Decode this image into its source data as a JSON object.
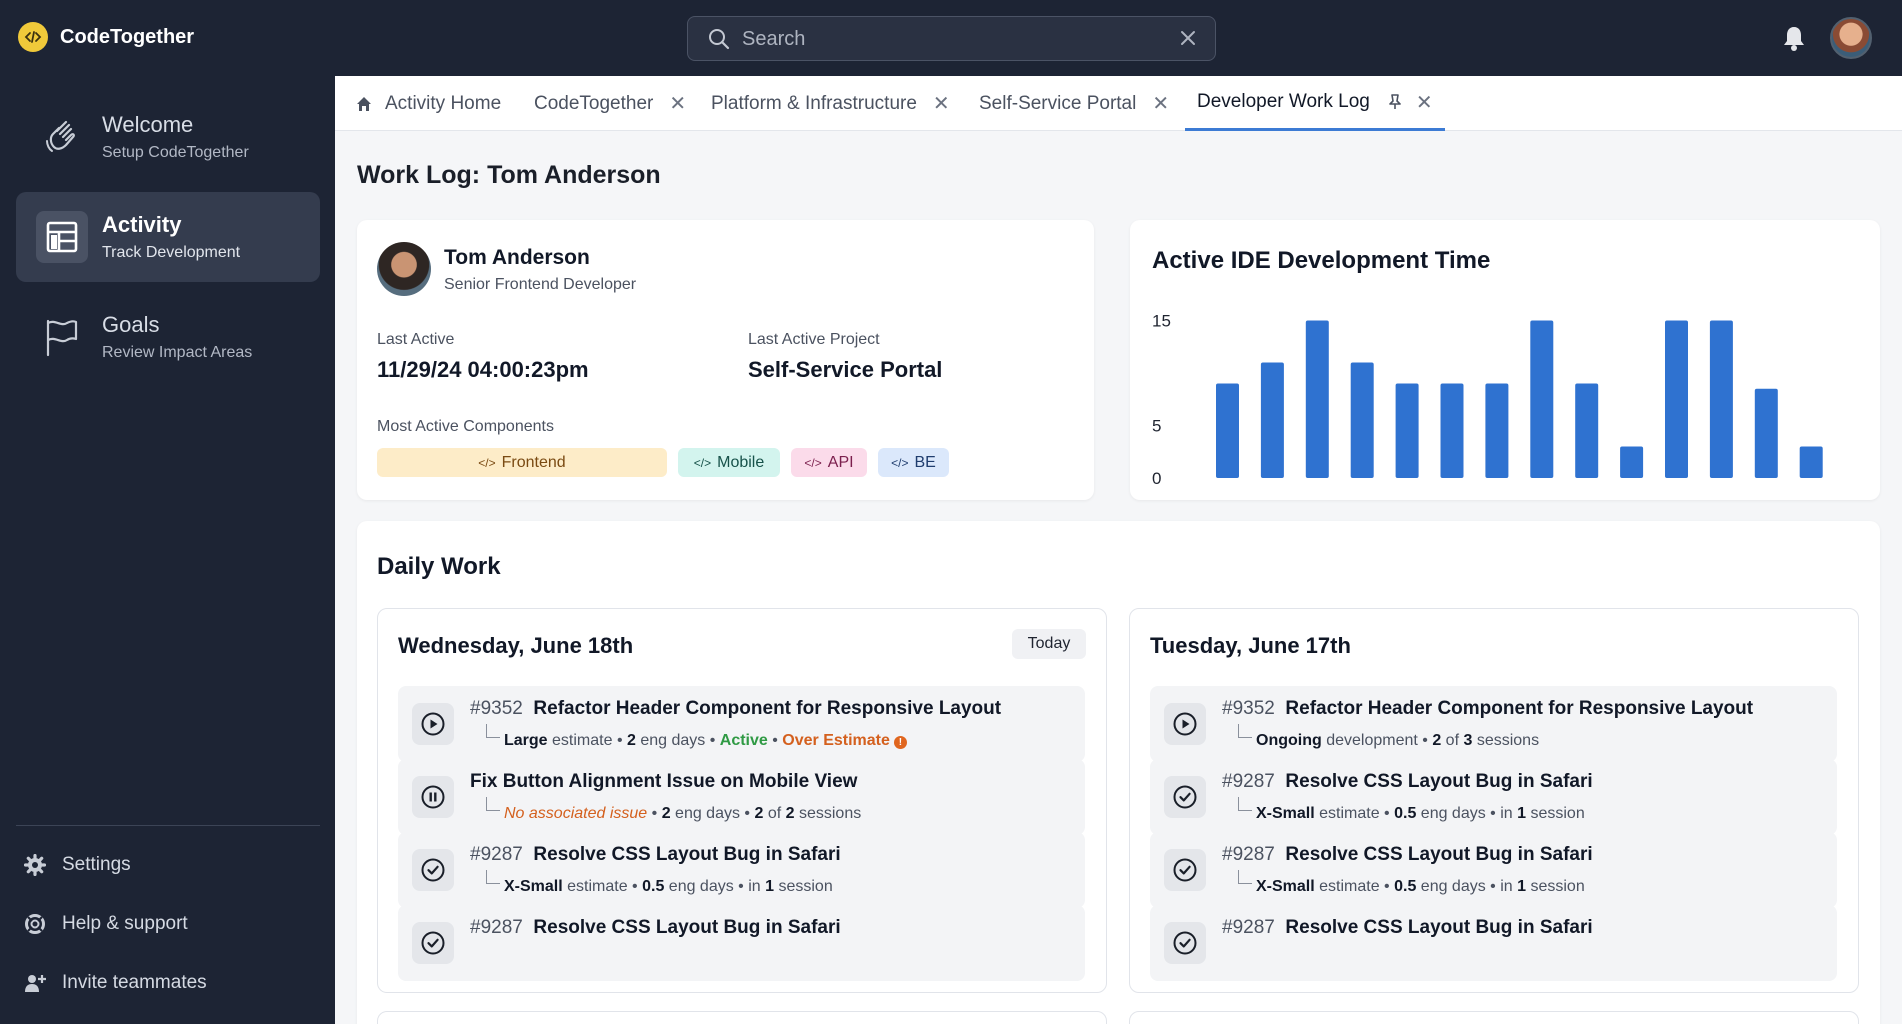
{
  "app": {
    "name": "CodeTogether"
  },
  "search": {
    "placeholder": "Search"
  },
  "sidebar": {
    "items": [
      {
        "title": "Welcome",
        "subtitle": "Setup CodeTogether"
      },
      {
        "title": "Activity",
        "subtitle": "Track Development"
      },
      {
        "title": "Goals",
        "subtitle": "Review Impact Areas"
      }
    ],
    "footer": [
      {
        "label": "Settings"
      },
      {
        "label": "Help & support"
      },
      {
        "label": "Invite teammates"
      }
    ]
  },
  "tabs": [
    {
      "label": "Activity Home"
    },
    {
      "label": "CodeTogether"
    },
    {
      "label": "Platform & Infrastructure"
    },
    {
      "label": "Self-Service Portal"
    },
    {
      "label": "Developer Work Log"
    }
  ],
  "page": {
    "title": "Work Log: Tom Anderson"
  },
  "profile": {
    "name": "Tom Anderson",
    "role": "Senior Frontend Developer",
    "last_active_label": "Last Active",
    "last_active_value": "11/29/24 04:00:23pm",
    "last_project_label": "Last Active Project",
    "last_project_value": "Self-Service Portal",
    "components_label": "Most Active Components",
    "components": [
      {
        "label": "Frontend",
        "bg": "#fdecc8",
        "fg": "#7a4a12"
      },
      {
        "label": "Mobile",
        "bg": "#d3f4ee",
        "fg": "#17524a"
      },
      {
        "label": "API",
        "bg": "#fbdbea",
        "fg": "#7b1f4d"
      },
      {
        "label": "BE",
        "bg": "#dbe8fb",
        "fg": "#1f3d6e"
      }
    ]
  },
  "chart_data": {
    "type": "bar",
    "title": "Active IDE Development Time",
    "yticks": [
      "15",
      "5",
      "0"
    ],
    "values": [
      9,
      11,
      15,
      11,
      9,
      9,
      9,
      15,
      9,
      3,
      15,
      15,
      8.5,
      3
    ],
    "ylim": [
      0,
      16
    ],
    "color": "#2f72d0",
    "grid": false
  },
  "daily": {
    "title": "Daily Work",
    "days": [
      {
        "title": "Wednesday, June 18th",
        "badge": "Today",
        "items": [
          {
            "icon": "play-icon",
            "num": "#9352",
            "title": "Refactor Header Component for Responsive Layout",
            "sub": [
              [
                "b",
                "Large"
              ],
              [
                "t",
                " estimate • "
              ],
              [
                "b",
                "2"
              ],
              [
                "t",
                " eng days • "
              ],
              [
                "g",
                "Active"
              ],
              [
                "t",
                " • "
              ],
              [
                "o",
                "Over Estimate"
              ],
              [
                "w",
                "!"
              ]
            ]
          },
          {
            "icon": "pause-icon",
            "num": "",
            "title": "Fix Button Alignment Issue on Mobile View",
            "sub": [
              [
                "io",
                "No associated issue"
              ],
              [
                "t",
                " • "
              ],
              [
                "b",
                "2"
              ],
              [
                "t",
                " eng days • "
              ],
              [
                "b",
                "2"
              ],
              [
                "t",
                " of "
              ],
              [
                "b",
                "2"
              ],
              [
                "t",
                " sessions"
              ]
            ]
          },
          {
            "icon": "check-icon",
            "num": "#9287",
            "title": "Resolve CSS Layout Bug in Safari",
            "sub": [
              [
                "b",
                "X-Small"
              ],
              [
                "t",
                " estimate • "
              ],
              [
                "b",
                "0.5"
              ],
              [
                "t",
                " eng days • in "
              ],
              [
                "b",
                "1"
              ],
              [
                "t",
                " session"
              ]
            ]
          },
          {
            "icon": "check-icon",
            "num": "#9287",
            "title": "Resolve CSS Layout Bug in Safari",
            "sub": []
          }
        ]
      },
      {
        "title": "Tuesday, June 17th",
        "badge": "",
        "items": [
          {
            "icon": "play-icon",
            "num": "#9352",
            "title": "Refactor Header Component for Responsive Layout",
            "sub": [
              [
                "b",
                "Ongoing"
              ],
              [
                "t",
                " development • "
              ],
              [
                "b",
                "2"
              ],
              [
                "t",
                " of "
              ],
              [
                "b",
                "3"
              ],
              [
                "t",
                " sessions"
              ]
            ]
          },
          {
            "icon": "check-icon",
            "num": "#9287",
            "title": "Resolve CSS Layout Bug in Safari",
            "sub": [
              [
                "b",
                "X-Small"
              ],
              [
                "t",
                " estimate • "
              ],
              [
                "b",
                "0.5"
              ],
              [
                "t",
                " eng days • in "
              ],
              [
                "b",
                "1"
              ],
              [
                "t",
                " session"
              ]
            ]
          },
          {
            "icon": "check-icon",
            "num": "#9287",
            "title": "Resolve CSS Layout Bug in Safari",
            "sub": [
              [
                "b",
                "X-Small"
              ],
              [
                "t",
                " estimate • "
              ],
              [
                "b",
                "0.5"
              ],
              [
                "t",
                " eng days • in "
              ],
              [
                "b",
                "1"
              ],
              [
                "t",
                " session"
              ]
            ]
          },
          {
            "icon": "check-icon",
            "num": "#9287",
            "title": "Resolve CSS Layout Bug in Safari",
            "sub": []
          }
        ]
      }
    ]
  }
}
